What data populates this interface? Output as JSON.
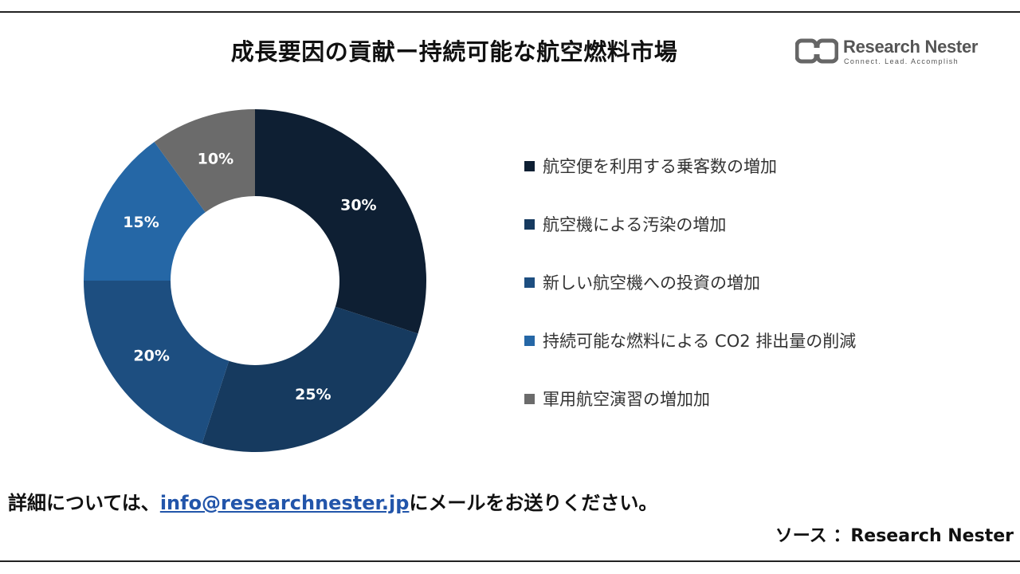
{
  "title": "成長要因の貢献ー持続可能な航空燃料市場",
  "logo": {
    "name": "Research Nester",
    "tagline": "Connect. Lead. Accomplish"
  },
  "chart_data": {
    "type": "pie",
    "donut": true,
    "categories": [
      "航空便を利用する乗客数の増加",
      "航空機による汚染の増加",
      "新しい航空機への投資の増加",
      "持続可能な燃料による CO2 排出量の削減",
      "軍用航空演習の増加加"
    ],
    "values": [
      30,
      25,
      20,
      15,
      10
    ],
    "labels": [
      "30%",
      "25%",
      "20%",
      "15%",
      "10%"
    ],
    "colors": [
      "#0e1f33",
      "#163a5f",
      "#1d4e80",
      "#2567a6",
      "#6b6b6b"
    ],
    "legend_position": "right"
  },
  "footer": {
    "prefix": "詳細については、",
    "email": "info@researchnester.jp",
    "suffix": "にメールをお送りください。"
  },
  "source": "ソース ：Research Nester"
}
